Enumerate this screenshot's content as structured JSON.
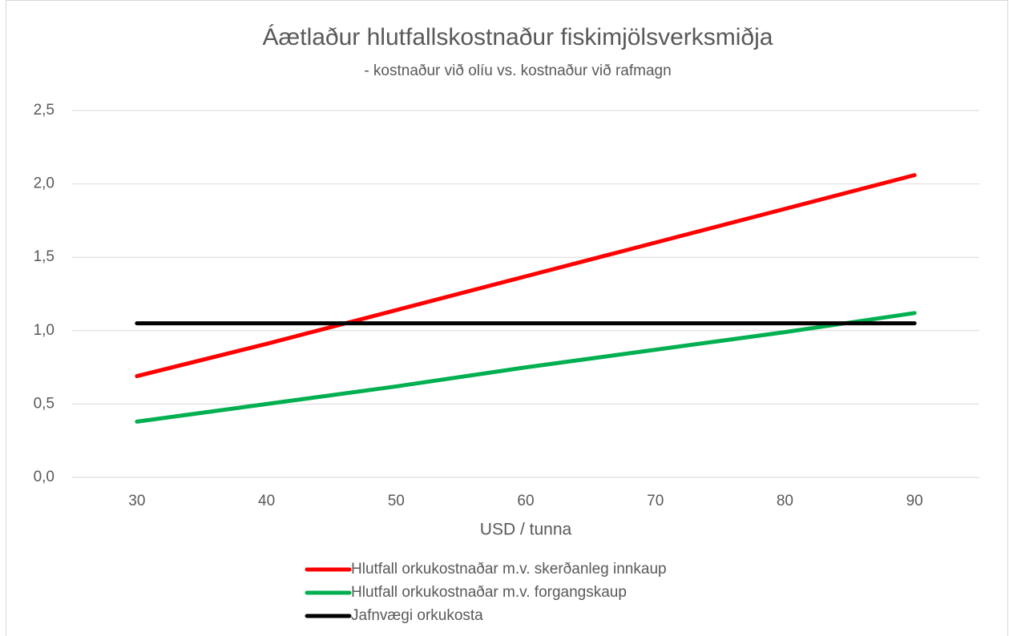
{
  "chart_data": {
    "type": "line",
    "title": "Áætlaður hlutfallskostnaður fiskimjölsverksmiðja",
    "subtitle": "- kostnaður við olíu vs. kostnaður við rafmagn",
    "x_label": "USD / tunna",
    "categories": [
      "30",
      "40",
      "50",
      "60",
      "70",
      "80",
      "90"
    ],
    "series": [
      {
        "name": "Hlutfall orkukostnaðar m.v. skerðanleg innkaup",
        "color": "#ff0000",
        "values": [
          0.69,
          0.91,
          1.14,
          1.37,
          1.6,
          1.83,
          2.06
        ]
      },
      {
        "name": "Hlutfall orkukostnaðar m.v. forgangskaup",
        "color": "#00b050",
        "values": [
          0.38,
          0.5,
          0.62,
          0.75,
          0.87,
          0.99,
          1.12
        ]
      },
      {
        "name": "Jafnvægi orkukosta",
        "color": "#000000",
        "values": [
          1.05,
          1.05,
          1.05,
          1.05,
          1.05,
          1.05,
          1.05
        ]
      }
    ],
    "ylim": [
      0,
      2.5
    ],
    "yticks": [
      {
        "value": 0,
        "label": "0,0"
      },
      {
        "value": 0.5,
        "label": "0,5"
      },
      {
        "value": 1,
        "label": "1,0"
      },
      {
        "value": 1.5,
        "label": "1,5"
      },
      {
        "value": 2,
        "label": "2,0"
      },
      {
        "value": 2.5,
        "label": "2,5"
      }
    ],
    "grid": true,
    "legend": "bottom"
  }
}
